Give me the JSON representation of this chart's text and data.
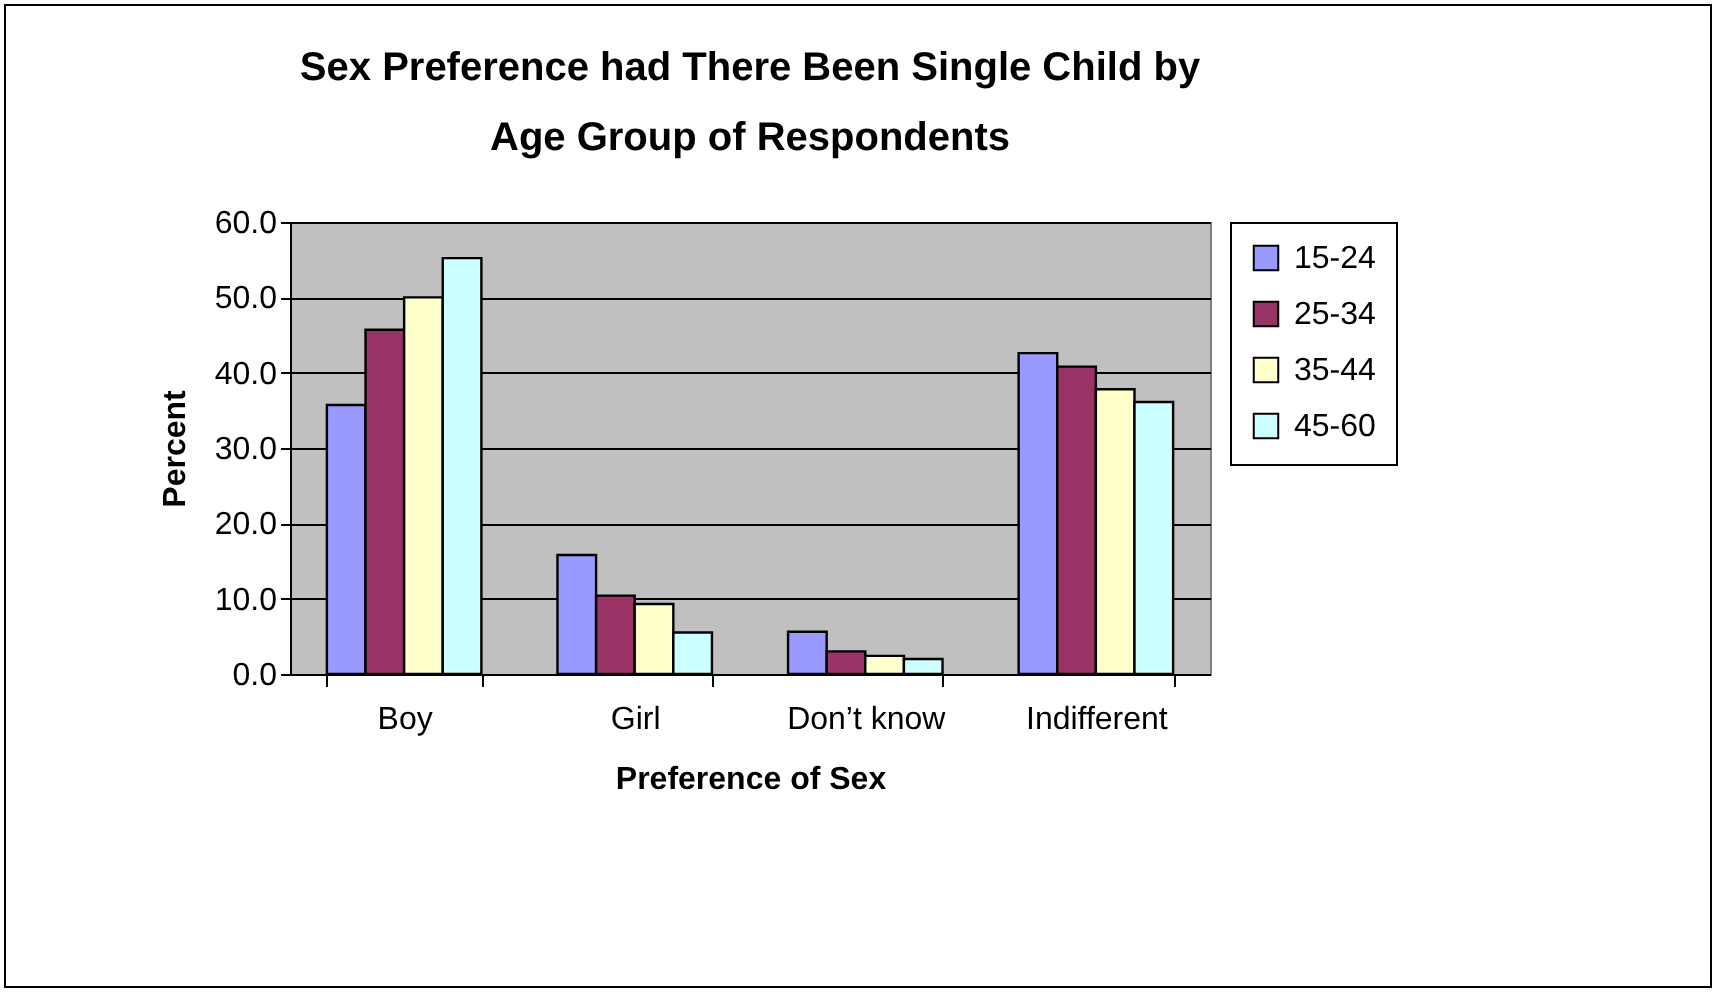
{
  "chart_data": {
    "type": "bar",
    "title": "Sex Preference had There Been Single Child by Age Group of Respondents",
    "xlabel": "Preference of Sex",
    "ylabel": "Percent",
    "categories": [
      "Boy",
      "Girl",
      "Don’t know",
      "Indifferent"
    ],
    "series": [
      {
        "name": "15-24",
        "color": "#9999ff",
        "values": [
          35.7,
          15.8,
          5.6,
          42.6
        ]
      },
      {
        "name": "25-34",
        "color": "#993366",
        "values": [
          45.7,
          10.4,
          3.0,
          40.8
        ]
      },
      {
        "name": "35-44",
        "color": "#ffffcc",
        "values": [
          50.0,
          9.3,
          2.4,
          37.8
        ]
      },
      {
        "name": "45-60",
        "color": "#ccffff",
        "values": [
          55.2,
          5.5,
          2.0,
          36.1
        ]
      }
    ],
    "ylim": [
      0,
      60
    ],
    "yticks": [
      {
        "value": 0,
        "label": "0.0"
      },
      {
        "value": 10,
        "label": "10.0"
      },
      {
        "value": 20,
        "label": "20.0"
      },
      {
        "value": 30,
        "label": "30.0"
      },
      {
        "value": 40,
        "label": "40.0"
      },
      {
        "value": 50,
        "label": "50.0"
      },
      {
        "value": 60,
        "label": "60.0"
      }
    ],
    "grid": "y",
    "legend": "right"
  }
}
